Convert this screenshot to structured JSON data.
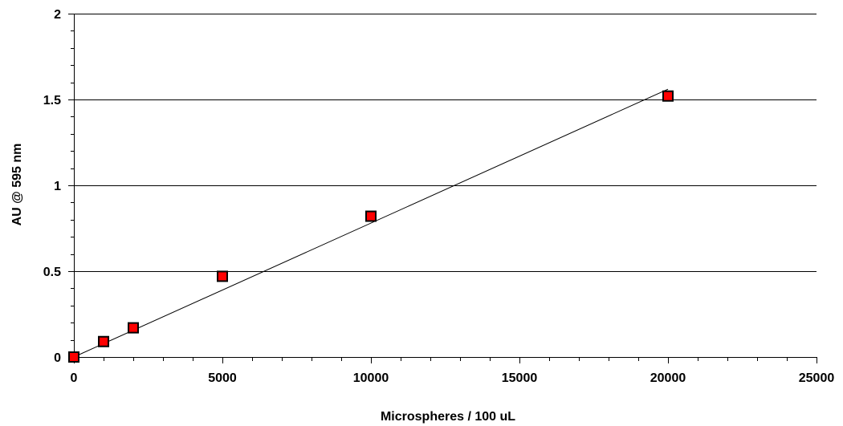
{
  "chart_data": {
    "type": "scatter",
    "title": "",
    "xlabel": "Microspheres / 100 uL",
    "ylabel": "AU @ 595 nm",
    "xlim": [
      0,
      25000
    ],
    "ylim": [
      0,
      2
    ],
    "x_ticks": [
      "0",
      "5000",
      "10000",
      "15000",
      "20000",
      "25000"
    ],
    "y_ticks": [
      "0",
      "0.5",
      "1",
      "1.5",
      "2"
    ],
    "x_tick_values": [
      0,
      5000,
      10000,
      15000,
      20000,
      25000
    ],
    "y_tick_values": [
      0,
      0.5,
      1,
      1.5,
      2
    ],
    "x_minor_step": 1000,
    "y_minor_step": 0.1,
    "grid": "horizontal major",
    "legend": "none",
    "series": [
      {
        "x": [
          0,
          1000,
          2000,
          5000,
          10000,
          20000
        ],
        "y": [
          0.0,
          0.09,
          0.17,
          0.47,
          0.82,
          1.52
        ],
        "marker": "square",
        "color": "#ff0000"
      }
    ],
    "trendline": {
      "type": "linear",
      "x": [
        0,
        20000
      ],
      "y": [
        0.0,
        1.56
      ],
      "color": "#000000"
    },
    "colors": {
      "marker_fill": "#ff0000",
      "marker_edge": "#000000",
      "grid": "#000000",
      "axis": "#000000"
    }
  }
}
